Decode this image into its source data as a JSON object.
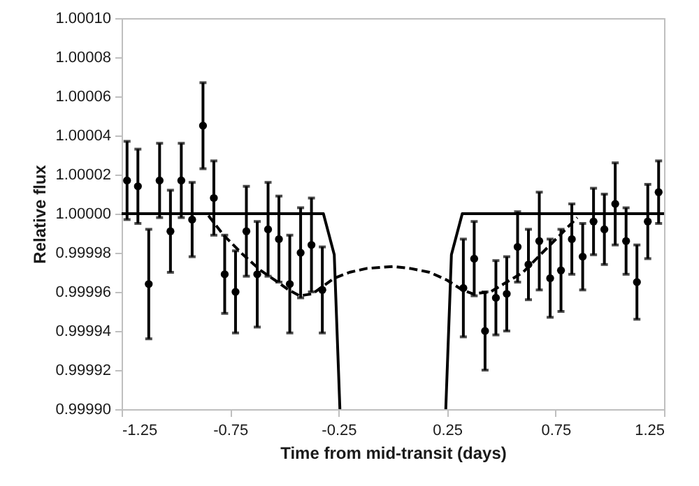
{
  "chart_data": {
    "type": "scatter",
    "xlabel": "Time from mid-transit (days)",
    "ylabel": "Relative flux",
    "xlim": [
      -1.25,
      1.25
    ],
    "ylim": [
      0.9999,
      1.0001
    ],
    "xticks": [
      -1.25,
      -0.75,
      -0.25,
      0.25,
      0.75,
      1.25
    ],
    "yticks": [
      {
        "value": 0.9999,
        "label": "0.99990"
      },
      0.99992,
      0.99994,
      0.99996,
      0.99998,
      {
        "value": 1.0,
        "label": "1.00000"
      },
      1.00002,
      1.00004,
      1.00006,
      1.00008,
      {
        "value": 1.0001,
        "label": "1.00010"
      }
    ],
    "grid": false,
    "series": [
      {
        "type": "line",
        "color": "#000000",
        "line_style": "solid",
        "x": [
          -1.25,
          -0.32,
          -0.27,
          -0.244,
          0,
          0.244,
          0.27,
          0.32,
          1.25
        ],
        "values": [
          1.0,
          1.0,
          0.999979,
          0.9999,
          null,
          0.9999,
          0.999979,
          1.0,
          1.0
        ]
      },
      {
        "type": "line",
        "color": "#000000",
        "line_style": "dashed",
        "x": [
          -0.85,
          -0.78,
          -0.69,
          -0.61,
          -0.53,
          -0.48,
          -0.43,
          -0.37,
          -0.32,
          -0.27,
          -0.2,
          -0.12,
          0.0,
          0.08,
          0.17,
          0.25,
          0.32,
          0.37,
          0.45,
          0.51,
          0.6,
          0.68,
          0.77,
          0.85
        ],
        "values": [
          0.999999,
          0.999989,
          0.999979,
          0.999971,
          0.999965,
          0.999961,
          0.999958,
          0.999959,
          0.999963,
          0.999967,
          0.99997,
          0.999972,
          0.999973,
          0.999972,
          0.99997,
          0.999966,
          0.999961,
          0.999959,
          0.99996,
          0.999964,
          0.99997,
          0.999979,
          0.999989,
          0.999998
        ]
      },
      {
        "color": "#000000",
        "marker": "circle",
        "x": [
          -1.225,
          -1.175,
          -1.125,
          -1.075,
          -1.025,
          -0.975,
          -0.925,
          -0.875,
          -0.825,
          -0.775,
          -0.725,
          -0.675,
          -0.625,
          -0.575,
          -0.525,
          -0.475,
          -0.425,
          -0.375,
          -0.325,
          0.325,
          0.375,
          0.425,
          0.475,
          0.525,
          0.575,
          0.625,
          0.675,
          0.725,
          0.775,
          0.825,
          0.875,
          0.925,
          0.975,
          1.025,
          1.075,
          1.125,
          1.175,
          1.225
        ],
        "values": [
          1.000017,
          1.000014,
          0.999964,
          1.000017,
          0.999991,
          1.000017,
          0.999997,
          1.000045,
          1.000008,
          0.999969,
          0.99996,
          0.999991,
          0.999969,
          0.999992,
          0.999987,
          0.999964,
          0.99998,
          0.999984,
          0.999961,
          0.999962,
          0.999977,
          0.99994,
          0.999957,
          0.999959,
          0.999983,
          0.999974,
          0.999986,
          0.999967,
          0.999971,
          0.999987,
          0.999978,
          0.999996,
          0.999992,
          1.000005,
          0.999986,
          0.999965,
          0.999996,
          1.000011
        ],
        "errors": [
          2e-05,
          1.9e-05,
          2.8e-05,
          1.9e-05,
          2.1e-05,
          1.9e-05,
          1.9e-05,
          2.2e-05,
          1.9e-05,
          2e-05,
          2.1e-05,
          2.3e-05,
          2.7e-05,
          2.4e-05,
          2.2e-05,
          2.5e-05,
          2.3e-05,
          2.4e-05,
          2.2e-05,
          2.5e-05,
          1.9e-05,
          2e-05,
          1.9e-05,
          1.9e-05,
          1.8e-05,
          1.8e-05,
          2.5e-05,
          2e-05,
          2.1e-05,
          1.8e-05,
          1.7e-05,
          1.7e-05,
          1.8e-05,
          2.1e-05,
          1.7e-05,
          1.9e-05,
          1.9e-05,
          1.6e-05
        ]
      }
    ]
  }
}
